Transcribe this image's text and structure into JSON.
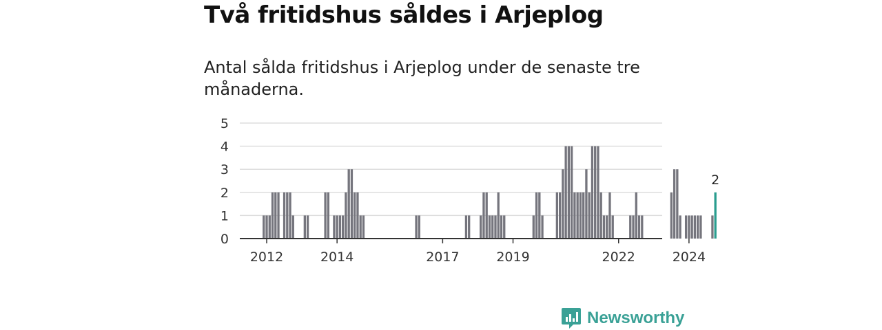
{
  "title": "Två fritidshus såldes i Arjeplog",
  "subtitle": "Antal sålda fritidshus i Arjeplog under de senaste tre månaderna.",
  "brand": "Newsworthy",
  "colors": {
    "bar": "#75757d",
    "highlight": "#2a9d8f",
    "grid": "#dddddd",
    "axis": "#333333"
  },
  "chart_data": {
    "type": "bar",
    "start": "2011-10",
    "frequency": "monthly",
    "yticks": [
      0,
      1,
      2,
      3,
      4,
      5
    ],
    "ylim": [
      0,
      5
    ],
    "xticks": [
      "2012",
      "2014",
      "2017",
      "2019",
      "2022",
      "2024"
    ],
    "values": [
      0,
      0,
      1,
      1,
      1,
      2,
      2,
      2,
      0,
      2,
      2,
      2,
      1,
      0,
      0,
      0,
      1,
      1,
      0,
      0,
      0,
      0,
      0,
      2,
      2,
      0,
      1,
      1,
      1,
      1,
      2,
      3,
      3,
      2,
      2,
      1,
      1,
      0,
      0,
      0,
      0,
      0,
      0,
      0,
      0,
      0,
      0,
      0,
      0,
      0,
      0,
      0,
      0,
      0,
      1,
      1,
      0,
      0,
      0,
      0,
      0,
      0,
      0,
      0,
      0,
      0,
      0,
      0,
      0,
      0,
      0,
      1,
      1,
      0,
      0,
      0,
      1,
      2,
      2,
      1,
      1,
      1,
      2,
      1,
      1,
      0,
      0,
      0,
      0,
      0,
      0,
      0,
      0,
      0,
      1,
      2,
      2,
      1,
      0,
      0,
      0,
      0,
      2,
      2,
      3,
      4,
      4,
      4,
      2,
      2,
      2,
      2,
      3,
      2,
      4,
      4,
      4,
      2,
      1,
      1,
      2,
      1,
      0,
      0,
      0,
      0,
      0,
      1,
      1,
      2,
      1,
      1,
      0,
      0,
      0,
      0,
      0,
      0,
      0,
      0,
      0,
      2,
      3,
      3,
      1,
      0,
      1,
      1,
      1,
      1,
      1,
      1,
      0,
      0,
      0,
      1,
      2
    ],
    "highlight_label": "2"
  }
}
